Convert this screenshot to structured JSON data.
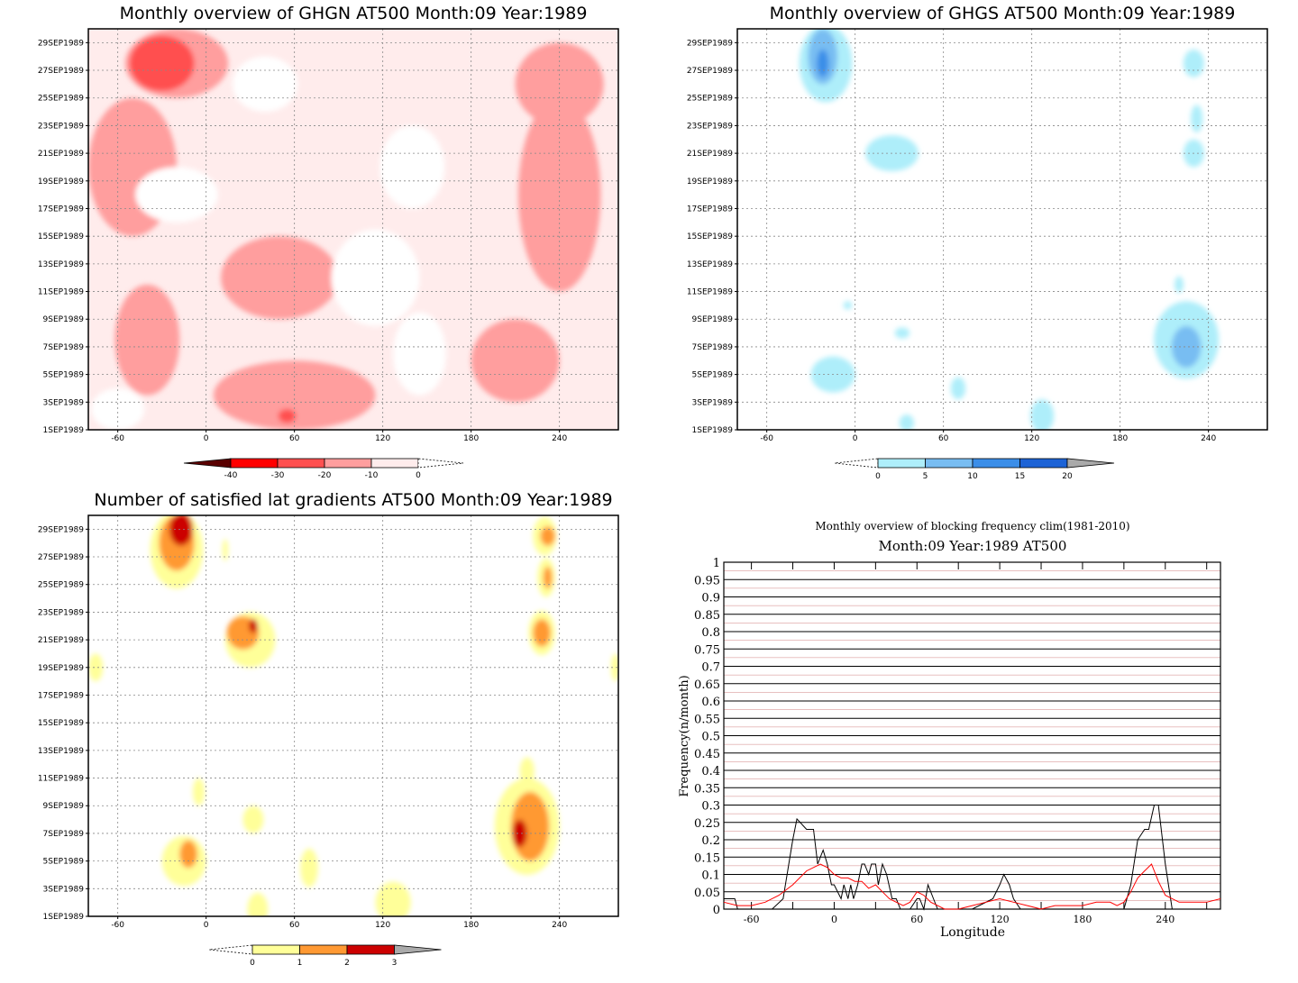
{
  "colors": {
    "red_scale": [
      "#5a0000",
      "#ff0000",
      "#ff5050",
      "#ff9e9e",
      "#ffecec",
      "#ffffff"
    ],
    "blue_scale": [
      "#ffffff",
      "#aeeefa",
      "#78bdf2",
      "#3b8ee8",
      "#1d63d6",
      "#aaaaaa"
    ],
    "grad_scale": [
      "#ffffff",
      "#ffff99",
      "#ff9933",
      "#cc0000",
      "#aaaaaa"
    ],
    "line_observed": "#000000",
    "line_clim": "#ff0000"
  },
  "chart_data": [
    {
      "id": "ghgn",
      "type": "heatmap",
      "title": "Monthly overview of GHGN AT500 Month:09 Year:1989",
      "x_ticks": [
        "-60",
        "0",
        "60",
        "120",
        "180",
        "240"
      ],
      "x_tick_values": [
        -60,
        0,
        60,
        120,
        180,
        240
      ],
      "xlim": [
        -80,
        280
      ],
      "y_ticks": [
        "1SEP1989",
        "3SEP1989",
        "5SEP1989",
        "7SEP1989",
        "9SEP1989",
        "11SEP1989",
        "13SEP1989",
        "15SEP1989",
        "17SEP1989",
        "19SEP1989",
        "21SEP1989",
        "23SEP1989",
        "25SEP1989",
        "27SEP1989",
        "29SEP1989"
      ],
      "ylim": [
        1,
        30
      ],
      "colorbar": {
        "labels": [
          "-40",
          "-30",
          "-20",
          "-10",
          "0"
        ],
        "levels": [
          -40,
          -30,
          -20,
          -10,
          0
        ]
      },
      "blobs": [
        {
          "level": 3,
          "x": -40,
          "y": 7.5,
          "rx": 22,
          "ry": 4
        },
        {
          "level": 3,
          "x": -50,
          "y": 20,
          "rx": 30,
          "ry": 5
        },
        {
          "level": 3,
          "x": 50,
          "y": 12,
          "rx": 40,
          "ry": 3
        },
        {
          "level": 3,
          "x": 240,
          "y": 18,
          "rx": 28,
          "ry": 7
        },
        {
          "level": 3,
          "x": 60,
          "y": 3.5,
          "rx": 55,
          "ry": 2.5
        },
        {
          "level": 3,
          "x": 210,
          "y": 6,
          "rx": 30,
          "ry": 3
        },
        {
          "level": 3,
          "x": 240,
          "y": 26,
          "rx": 30,
          "ry": 3
        },
        {
          "level": 3,
          "x": -20,
          "y": 27.5,
          "rx": 35,
          "ry": 2.5
        },
        {
          "level": 2,
          "x": -30,
          "y": 27.5,
          "rx": 22,
          "ry": 2
        },
        {
          "level": 2,
          "x": 55,
          "y": 2,
          "rx": 6,
          "ry": 0.5
        },
        {
          "level": 5,
          "x": 140,
          "y": 20,
          "rx": 22,
          "ry": 3
        },
        {
          "level": 5,
          "x": 115,
          "y": 12,
          "rx": 30,
          "ry": 3.5
        },
        {
          "level": 5,
          "x": -20,
          "y": 18,
          "rx": 28,
          "ry": 2
        },
        {
          "level": 5,
          "x": 40,
          "y": 26,
          "rx": 22,
          "ry": 2
        },
        {
          "level": 5,
          "x": -60,
          "y": 2.5,
          "rx": 18,
          "ry": 1.5
        },
        {
          "level": 5,
          "x": 145,
          "y": 6.5,
          "rx": 18,
          "ry": 3
        }
      ]
    },
    {
      "id": "ghgs",
      "type": "heatmap",
      "title": "Monthly overview of GHGS AT500 Month:09 Year:1989",
      "x_ticks": [
        "-60",
        "0",
        "60",
        "120",
        "180",
        "240"
      ],
      "x_tick_values": [
        -60,
        0,
        60,
        120,
        180,
        240
      ],
      "xlim": [
        -80,
        280
      ],
      "y_ticks": [
        "1SEP1989",
        "3SEP1989",
        "5SEP1989",
        "7SEP1989",
        "9SEP1989",
        "11SEP1989",
        "13SEP1989",
        "15SEP1989",
        "17SEP1989",
        "19SEP1989",
        "21SEP1989",
        "23SEP1989",
        "25SEP1989",
        "27SEP1989",
        "29SEP1989"
      ],
      "ylim": [
        1,
        30
      ],
      "colorbar": {
        "labels": [
          "0",
          "5",
          "10",
          "15",
          "20"
        ],
        "levels": [
          0,
          5,
          10,
          15,
          20
        ]
      },
      "blobs": [
        {
          "level": 1,
          "x": -20,
          "y": 27.5,
          "rx": 18,
          "ry": 2.8
        },
        {
          "level": 2,
          "x": -22,
          "y": 28,
          "rx": 10,
          "ry": 2
        },
        {
          "level": 3,
          "x": -22,
          "y": 27.5,
          "rx": 4,
          "ry": 1
        },
        {
          "level": 1,
          "x": 25,
          "y": 21,
          "rx": 18,
          "ry": 1.3
        },
        {
          "level": 1,
          "x": 230,
          "y": 27.5,
          "rx": 7,
          "ry": 1
        },
        {
          "level": 1,
          "x": 232,
          "y": 23.5,
          "rx": 4,
          "ry": 1
        },
        {
          "level": 1,
          "x": 230,
          "y": 21,
          "rx": 7,
          "ry": 1
        },
        {
          "level": 1,
          "x": 220,
          "y": 11.5,
          "rx": 3,
          "ry": 0.6
        },
        {
          "level": 1,
          "x": 225,
          "y": 7.5,
          "rx": 22,
          "ry": 2.8
        },
        {
          "level": 2,
          "x": 225,
          "y": 7,
          "rx": 10,
          "ry": 1.5
        },
        {
          "level": 1,
          "x": -15,
          "y": 5,
          "rx": 15,
          "ry": 1.3
        },
        {
          "level": 1,
          "x": 32,
          "y": 8,
          "rx": 5,
          "ry": 0.4
        },
        {
          "level": 1,
          "x": -5,
          "y": 10,
          "rx": 3,
          "ry": 0.3
        },
        {
          "level": 1,
          "x": 70,
          "y": 4,
          "rx": 5,
          "ry": 0.8
        },
        {
          "level": 1,
          "x": 35,
          "y": 1.5,
          "rx": 5,
          "ry": 0.6
        },
        {
          "level": 1,
          "x": 127,
          "y": 2,
          "rx": 8,
          "ry": 1.2
        }
      ]
    },
    {
      "id": "latgrad",
      "type": "heatmap",
      "title": "Number of satisfied lat gradients AT500 Month:09 Year:1989",
      "x_ticks": [
        "-60",
        "0",
        "60",
        "120",
        "180",
        "240"
      ],
      "x_tick_values": [
        -60,
        0,
        60,
        120,
        180,
        240
      ],
      "xlim": [
        -80,
        280
      ],
      "y_ticks": [
        "1SEP1989",
        "3SEP1989",
        "5SEP1989",
        "7SEP1989",
        "9SEP1989",
        "11SEP1989",
        "13SEP1989",
        "15SEP1989",
        "17SEP1989",
        "19SEP1989",
        "21SEP1989",
        "23SEP1989",
        "25SEP1989",
        "27SEP1989",
        "29SEP1989"
      ],
      "ylim": [
        1,
        30
      ],
      "colorbar": {
        "labels": [
          "0",
          "1",
          "2",
          "3"
        ],
        "levels": [
          0,
          1,
          2,
          3
        ]
      },
      "blobs": [
        {
          "level": 1,
          "x": -20,
          "y": 27.5,
          "rx": 18,
          "ry": 2.8
        },
        {
          "level": 2,
          "x": -20,
          "y": 28,
          "rx": 12,
          "ry": 2
        },
        {
          "level": 3,
          "x": -17,
          "y": 29,
          "rx": 8,
          "ry": 1.2
        },
        {
          "level": 1,
          "x": 13,
          "y": 27.5,
          "rx": 2,
          "ry": 0.8
        },
        {
          "level": 1,
          "x": 30,
          "y": 21,
          "rx": 17,
          "ry": 2
        },
        {
          "level": 2,
          "x": 25,
          "y": 21.5,
          "rx": 11,
          "ry": 1.2
        },
        {
          "level": 3,
          "x": 32,
          "y": 22,
          "rx": 3,
          "ry": 0.5
        },
        {
          "level": 1,
          "x": 230,
          "y": 28.5,
          "rx": 8,
          "ry": 1.4
        },
        {
          "level": 2,
          "x": 232,
          "y": 28.5,
          "rx": 5,
          "ry": 0.7
        },
        {
          "level": 1,
          "x": 231,
          "y": 25.5,
          "rx": 6,
          "ry": 1.4
        },
        {
          "level": 2,
          "x": 232,
          "y": 25.5,
          "rx": 3,
          "ry": 0.8
        },
        {
          "level": 1,
          "x": 228,
          "y": 21.5,
          "rx": 9,
          "ry": 1.6
        },
        {
          "level": 2,
          "x": 228,
          "y": 21.5,
          "rx": 6,
          "ry": 1
        },
        {
          "level": 1,
          "x": -75,
          "y": 19,
          "rx": 5,
          "ry": 1
        },
        {
          "level": 1,
          "x": 278,
          "y": 19,
          "rx": 3,
          "ry": 1
        },
        {
          "level": 1,
          "x": 218,
          "y": 7.5,
          "rx": 22,
          "ry": 3.5
        },
        {
          "level": 2,
          "x": 220,
          "y": 7.5,
          "rx": 13,
          "ry": 2.5
        },
        {
          "level": 3,
          "x": 213,
          "y": 7,
          "rx": 5,
          "ry": 1
        },
        {
          "level": 1,
          "x": 218,
          "y": 11.5,
          "rx": 5,
          "ry": 1
        },
        {
          "level": 1,
          "x": -5,
          "y": 10,
          "rx": 4,
          "ry": 1
        },
        {
          "level": 1,
          "x": 32,
          "y": 8,
          "rx": 7,
          "ry": 1
        },
        {
          "level": 1,
          "x": -15,
          "y": 5,
          "rx": 15,
          "ry": 1.8
        },
        {
          "level": 2,
          "x": -12,
          "y": 5.5,
          "rx": 6,
          "ry": 1
        },
        {
          "level": 1,
          "x": 70,
          "y": 4.5,
          "rx": 6,
          "ry": 1.4
        },
        {
          "level": 1,
          "x": 35,
          "y": 1.5,
          "rx": 7,
          "ry": 1.2
        },
        {
          "level": 1,
          "x": 127,
          "y": 2,
          "rx": 12,
          "ry": 1.5
        }
      ]
    },
    {
      "id": "blockfreq",
      "type": "line",
      "title": "Monthly overview of blocking frequency clim(1981-2010)",
      "subtitle": "Month:09 Year:1989  AT500",
      "xlabel": "Longitude",
      "ylabel": "Frequency(n/month)",
      "x_ticks": [
        "-60",
        "0",
        "60",
        "120",
        "180",
        "240"
      ],
      "x_tick_values": [
        -60,
        0,
        60,
        120,
        180,
        240
      ],
      "xlim": [
        -80,
        280
      ],
      "ylim": [
        0,
        1
      ],
      "y_ticks": [
        "0",
        "0.05",
        "0.1",
        "0.15",
        "0.2",
        "0.25",
        "0.3",
        "0.35",
        "0.4",
        "0.45",
        "0.5",
        "0.55",
        "0.6",
        "0.65",
        "0.7",
        "0.75",
        "0.8",
        "0.85",
        "0.9",
        "0.95",
        "1"
      ],
      "series": [
        {
          "color": "#000000",
          "x": [
            -80,
            -72,
            -70,
            -45,
            -37,
            -30,
            -27,
            -20,
            -15,
            -12,
            -8,
            -5,
            -2,
            0,
            5,
            7,
            10,
            12,
            14,
            17,
            20,
            22,
            25,
            27,
            30,
            32,
            35,
            38,
            42,
            45,
            48,
            52,
            55,
            60,
            62,
            65,
            68,
            72,
            75,
            80,
            100,
            115,
            120,
            123,
            127,
            130,
            135,
            180,
            200,
            210,
            215,
            220,
            225,
            228,
            232,
            235,
            240,
            245,
            280
          ],
          "y": [
            0.03,
            0.03,
            0,
            0,
            0.03,
            0.2,
            0.26,
            0.23,
            0.23,
            0.13,
            0.17,
            0.13,
            0.07,
            0.07,
            0.03,
            0.07,
            0.03,
            0.07,
            0.03,
            0.07,
            0.13,
            0.13,
            0.1,
            0.13,
            0.13,
            0.07,
            0.13,
            0.1,
            0.03,
            0.03,
            0,
            0,
            0,
            0.03,
            0.03,
            0,
            0.07,
            0.03,
            0,
            0,
            0,
            0.03,
            0.07,
            0.1,
            0.07,
            0.03,
            0,
            0,
            0,
            0,
            0.07,
            0.2,
            0.23,
            0.23,
            0.3,
            0.3,
            0.13,
            0,
            0
          ]
        },
        {
          "color": "#ff0000",
          "x": [
            -80,
            -70,
            -60,
            -50,
            -40,
            -30,
            -20,
            -10,
            -5,
            0,
            5,
            10,
            15,
            20,
            25,
            30,
            35,
            40,
            45,
            50,
            55,
            60,
            65,
            70,
            75,
            80,
            90,
            100,
            110,
            120,
            130,
            140,
            150,
            160,
            170,
            180,
            190,
            200,
            205,
            210,
            215,
            220,
            225,
            230,
            235,
            240,
            250,
            260,
            270,
            280
          ],
          "y": [
            0.02,
            0.01,
            0.01,
            0.02,
            0.04,
            0.07,
            0.11,
            0.13,
            0.12,
            0.1,
            0.09,
            0.09,
            0.08,
            0.08,
            0.06,
            0.07,
            0.05,
            0.03,
            0.02,
            0.01,
            0.02,
            0.05,
            0.04,
            0.02,
            0.01,
            0,
            0,
            0.01,
            0.02,
            0.03,
            0.02,
            0.01,
            0,
            0.01,
            0.01,
            0.01,
            0.02,
            0.02,
            0.01,
            0.02,
            0.05,
            0.09,
            0.11,
            0.13,
            0.08,
            0.04,
            0.02,
            0.02,
            0.02,
            0.03
          ]
        }
      ]
    }
  ]
}
